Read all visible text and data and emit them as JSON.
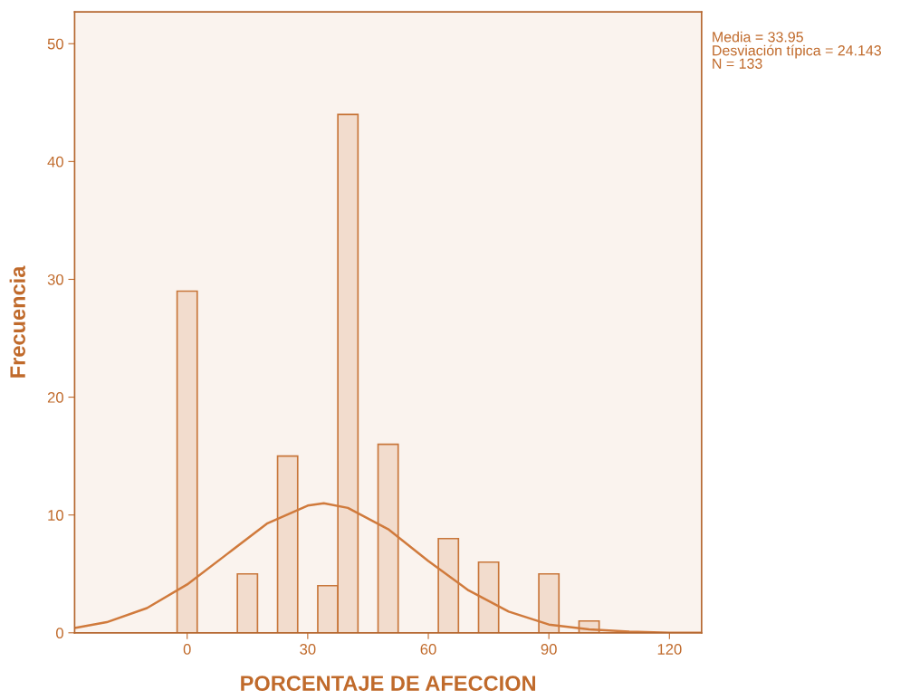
{
  "chart_data": {
    "type": "histogram",
    "xlabel": "PORCENTAJE DE AFECCION",
    "ylabel": "Frecuencia",
    "bins": [
      -2.5,
      2.5,
      12.5,
      17.5,
      22.5,
      27.5,
      32.5,
      37.5,
      42.5,
      47.5,
      52.5,
      62.5,
      67.5,
      72.5,
      77.5,
      87.5,
      92.5,
      97.5,
      102.5
    ],
    "values": [
      29,
      0,
      5,
      0,
      15,
      0,
      4,
      44,
      0,
      16,
      0,
      8,
      0,
      6,
      0,
      5,
      0,
      1
    ],
    "color": "#f2dccd",
    "series": [
      {
        "type": "line",
        "color": "#d07a3c",
        "x": [
          -28,
          -20,
          -10,
          0,
          10,
          20,
          30,
          34,
          40,
          50,
          60,
          70,
          80,
          90,
          100,
          110,
          120,
          128
        ],
        "values": [
          0.4,
          0.9,
          2.1,
          4.1,
          6.7,
          9.3,
          10.8,
          11.0,
          10.6,
          8.8,
          6.1,
          3.6,
          1.8,
          0.7,
          0.3,
          0.1,
          0,
          0
        ]
      }
    ],
    "xlim": [
      -28,
      128
    ],
    "ylim": [
      0,
      52.7
    ],
    "xticks": [
      0,
      30,
      60,
      90,
      120
    ],
    "yticks": [
      0,
      10,
      20,
      30,
      40,
      50
    ],
    "grid": false,
    "legend": false,
    "annotations": [
      "Media = 33.95",
      "Desviación típica = 24.143",
      "N = 133"
    ]
  }
}
